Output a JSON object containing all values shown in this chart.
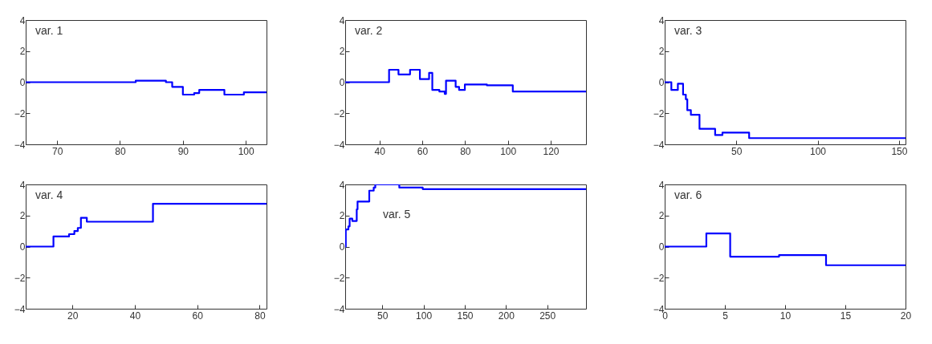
{
  "chart_data": [
    {
      "type": "step",
      "annotations": [
        "var. 1"
      ],
      "xlim": [
        65,
        103.3
      ],
      "xticks": [
        70,
        80,
        90,
        100
      ],
      "ylim": [
        -4,
        4
      ],
      "yticks": [
        -4,
        -2,
        0,
        2,
        4
      ],
      "x": [
        65,
        82.5,
        87.3,
        88.3,
        90,
        91.8,
        92.6,
        96.6,
        99.7,
        103.3
      ],
      "series": [
        {
          "color": "#0000ff",
          "values": [
            0,
            0.1,
            0,
            -0.3,
            -0.8,
            -0.7,
            -0.5,
            -0.8,
            -0.65,
            -0.65
          ]
        }
      ]
    },
    {
      "type": "step",
      "annotations": [
        "var. 2"
      ],
      "xlim": [
        24,
        136.5
      ],
      "xticks": [
        40,
        60,
        80,
        100,
        120
      ],
      "ylim": [
        -4,
        4
      ],
      "yticks": [
        -4,
        -2,
        0,
        2,
        4
      ],
      "x": [
        24,
        44.5,
        48.9,
        54.3,
        58.9,
        63.2,
        64.7,
        68,
        70.5,
        71.1,
        75.6,
        77.2,
        79.9,
        90.2,
        102.3,
        136.5
      ],
      "series": [
        {
          "color": "#0000ff",
          "values": [
            0,
            0.8,
            0.5,
            0.8,
            0.2,
            0.6,
            -0.5,
            -0.6,
            -0.75,
            0.1,
            -0.3,
            -0.5,
            -0.15,
            -0.2,
            -0.6,
            -0.6
          ]
        }
      ]
    },
    {
      "type": "step",
      "annotations": [
        "var. 3"
      ],
      "xlim": [
        6,
        154
      ],
      "xticks": [
        50,
        100,
        150
      ],
      "ylim": [
        -4,
        4
      ],
      "yticks": [
        -4,
        -2,
        0,
        2,
        4
      ],
      "x": [
        6,
        10.1,
        14.1,
        17.3,
        19,
        19.9,
        22.1,
        27.4,
        37,
        41.5,
        57.9,
        154
      ],
      "series": [
        {
          "color": "#0000ff",
          "values": [
            0,
            -0.5,
            -0.1,
            -0.8,
            -1.1,
            -1.8,
            -2.1,
            -3,
            -3.4,
            -3.25,
            -3.6,
            -3.6
          ]
        }
      ]
    },
    {
      "type": "step",
      "annotations": [
        "var. 4"
      ],
      "xlim": [
        5,
        82.2
      ],
      "xticks": [
        20,
        40,
        60,
        80
      ],
      "ylim": [
        -4,
        4
      ],
      "yticks": [
        -4,
        -2,
        0,
        2,
        4
      ],
      "x": [
        5,
        13.9,
        18.9,
        20.6,
        21.7,
        22.7,
        24.6,
        45.8,
        82.2
      ],
      "series": [
        {
          "color": "#0000ff",
          "values": [
            0,
            0.65,
            0.8,
            1,
            1.2,
            1.85,
            1.6,
            2.75,
            2.75
          ]
        }
      ]
    },
    {
      "type": "step",
      "annotations": [
        "var. 5"
      ],
      "xlim": [
        5,
        297
      ],
      "xticks": [
        50,
        100,
        150,
        200,
        250
      ],
      "ylim": [
        -4,
        4
      ],
      "yticks": [
        -4,
        -2,
        0,
        2,
        4
      ],
      "x": [
        5,
        5.7,
        8.9,
        10.4,
        13.6,
        19,
        20,
        34.2,
        39.6,
        41.5,
        70.6,
        99,
        297
      ],
      "series": [
        {
          "color": "#0000ff",
          "values": [
            0,
            1.1,
            1.3,
            1.8,
            1.65,
            2.4,
            2.9,
            3.6,
            3.8,
            4,
            3.8,
            3.7,
            3.7
          ]
        }
      ]
    },
    {
      "type": "step",
      "annotations": [
        "var. 6"
      ],
      "xlim": [
        0,
        20
      ],
      "xticks": [
        0,
        5,
        10,
        15,
        20
      ],
      "ylim": [
        -4,
        4
      ],
      "yticks": [
        -4,
        -2,
        0,
        2,
        4
      ],
      "x": [
        0,
        3.46,
        5.44,
        9.5,
        13.4,
        20
      ],
      "series": [
        {
          "color": "#0000ff",
          "values": [
            0,
            0.85,
            -0.65,
            -0.55,
            -1.2,
            -1.2
          ]
        }
      ]
    }
  ]
}
